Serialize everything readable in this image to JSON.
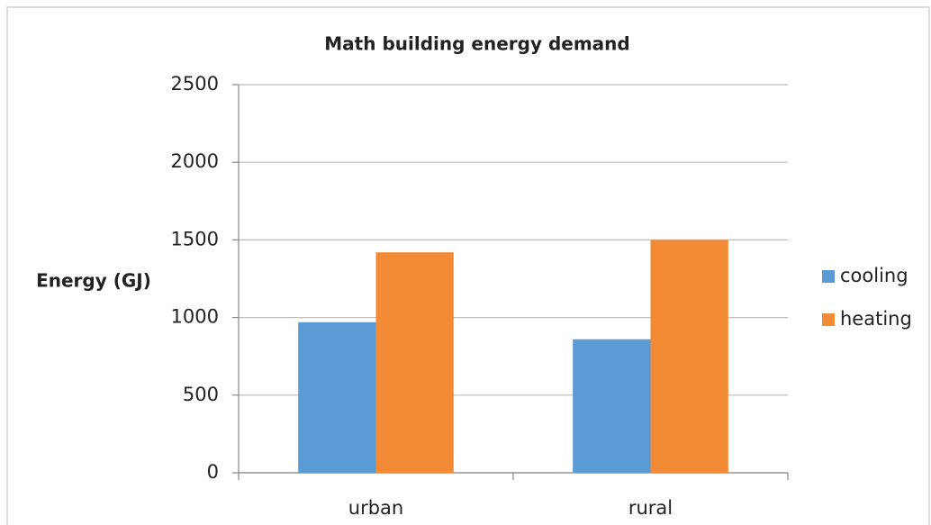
{
  "chart_data": {
    "type": "bar",
    "title": "Math building energy demand",
    "y_label": "Energy (GJ)",
    "categories": [
      "urban",
      "rural"
    ],
    "series": [
      {
        "name": "cooling",
        "color": "#5b9bd5",
        "values": [
          970,
          860
        ]
      },
      {
        "name": "heating",
        "color": "#f28a36",
        "values": [
          1420,
          1500
        ]
      }
    ],
    "ylim": [
      0,
      2500
    ],
    "yticks": [
      0,
      500,
      1000,
      1500,
      2000,
      2500
    ],
    "grid": true,
    "legend": "right"
  }
}
